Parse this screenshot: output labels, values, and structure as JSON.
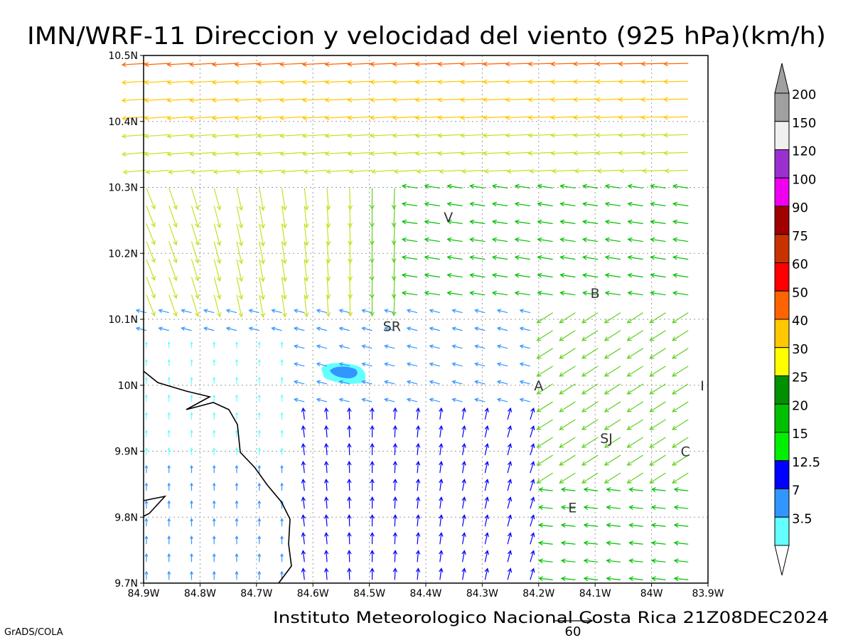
{
  "title": "IMN/WRF-11 Direccion y velocidad del viento (925 hPa)(km/h)",
  "footer": "Instituto Meteorologico Nacional Costa Rica  21Z08DEC2024",
  "software_label": "GrADS/COLA",
  "reference_vector": {
    "value": 60,
    "label": "60"
  },
  "axes": {
    "x_ticks": [
      {
        "lon": -84.9,
        "label": "84.9W"
      },
      {
        "lon": -84.8,
        "label": "84.8W"
      },
      {
        "lon": -84.7,
        "label": "84.7W"
      },
      {
        "lon": -84.6,
        "label": "84.6W"
      },
      {
        "lon": -84.5,
        "label": "84.5W"
      },
      {
        "lon": -84.4,
        "label": "84.4W"
      },
      {
        "lon": -84.3,
        "label": "84.3W"
      },
      {
        "lon": -84.2,
        "label": "84.2W"
      },
      {
        "lon": -84.1,
        "label": "84.1W"
      },
      {
        "lon": -84.0,
        "label": "84W"
      },
      {
        "lon": -83.9,
        "label": "83.9W"
      }
    ],
    "y_ticks": [
      {
        "lat": 10.5,
        "label": "10.5N"
      },
      {
        "lat": 10.4,
        "label": "10.4N"
      },
      {
        "lat": 10.3,
        "label": "10.3N"
      },
      {
        "lat": 10.2,
        "label": "10.2N"
      },
      {
        "lat": 10.1,
        "label": "10.1N"
      },
      {
        "lat": 10.0,
        "label": "10N"
      },
      {
        "lat": 9.9,
        "label": "9.9N"
      },
      {
        "lat": 9.8,
        "label": "9.8N"
      },
      {
        "lat": 9.7,
        "label": "9.7N"
      }
    ],
    "lon_range": [
      -84.9,
      -83.9
    ],
    "lat_range": [
      9.7,
      10.5
    ],
    "grid": true
  },
  "places": [
    {
      "label": "V",
      "lon": -84.36,
      "lat": 10.255
    },
    {
      "label": "SR",
      "lon": -84.46,
      "lat": 10.09
    },
    {
      "label": "B",
      "lon": -84.1,
      "lat": 10.14
    },
    {
      "label": "A",
      "lon": -84.2,
      "lat": 10.0
    },
    {
      "label": "I",
      "lon": -83.91,
      "lat": 10.0
    },
    {
      "label": "SJ",
      "lon": -84.08,
      "lat": 9.92
    },
    {
      "label": "C",
      "lon": -83.94,
      "lat": 9.9
    },
    {
      "label": "E",
      "lon": -84.14,
      "lat": 9.815
    }
  ],
  "legend": {
    "levels": [
      {
        "label": "200",
        "color": "#a0a0a0"
      },
      {
        "label": "150",
        "color": "#f0f0f0"
      },
      {
        "label": "120",
        "color": "#9b30d0"
      },
      {
        "label": "100",
        "color": "#f000f0"
      },
      {
        "label": "90",
        "color": "#a00000"
      },
      {
        "label": "75",
        "color": "#c83200"
      },
      {
        "label": "60",
        "color": "#ff0000"
      },
      {
        "label": "50",
        "color": "#ff6400"
      },
      {
        "label": "40",
        "color": "#ffc800"
      },
      {
        "label": "30",
        "color": "#ffff00"
      },
      {
        "label": "25",
        "color": "#009000"
      },
      {
        "label": "20",
        "color": "#00c000"
      },
      {
        "label": "15",
        "color": "#00f000"
      },
      {
        "label": "12.5",
        "color": "#0000ff"
      },
      {
        "label": "7",
        "color": "#3296ff"
      },
      {
        "label": "3.5",
        "color": "#64ffff"
      }
    ],
    "bottom_triangle_color": "#ffffff",
    "top_triangle_color": "#a0a0a0"
  },
  "highlight_patch": {
    "outer_color": "#64ffff",
    "inner_color": "#3296ff"
  }
}
